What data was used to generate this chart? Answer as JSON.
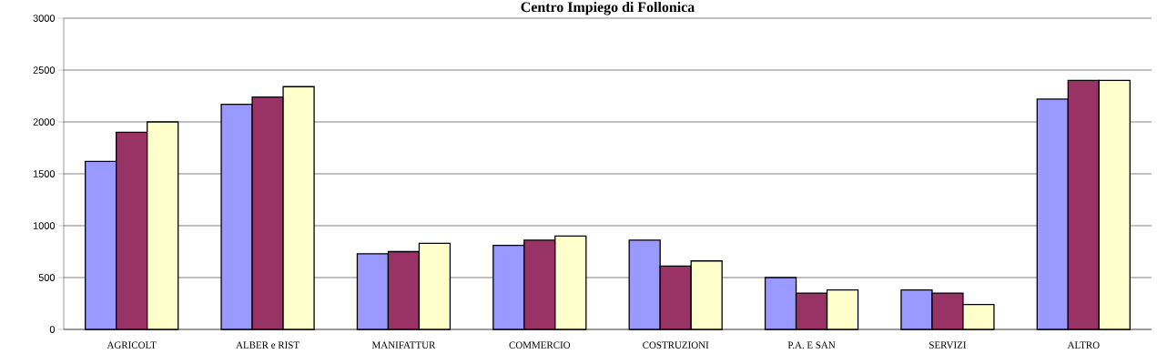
{
  "chart_data": {
    "type": "bar",
    "title": "Centro Impiego di Follonica",
    "categories": [
      "AGRICOLT",
      "ALBER e RIST",
      "MANIFATTUR",
      "COMMERCIO",
      "COSTRUZIONI",
      "P.A. E SAN",
      "SERVIZI",
      "ALTRO"
    ],
    "series": [
      {
        "color": "#9999ff",
        "values": [
          1620,
          2170,
          730,
          810,
          860,
          500,
          380,
          2220
        ]
      },
      {
        "color": "#993366",
        "values": [
          1900,
          2240,
          750,
          860,
          610,
          350,
          350,
          2400
        ]
      },
      {
        "color": "#ffffcc",
        "values": [
          2000,
          2340,
          830,
          900,
          660,
          380,
          240,
          2400
        ]
      }
    ],
    "ylim": [
      0,
      3000
    ],
    "yticks": [
      0,
      500,
      1000,
      1500,
      2000,
      2500,
      3000
    ],
    "grid": "y"
  }
}
